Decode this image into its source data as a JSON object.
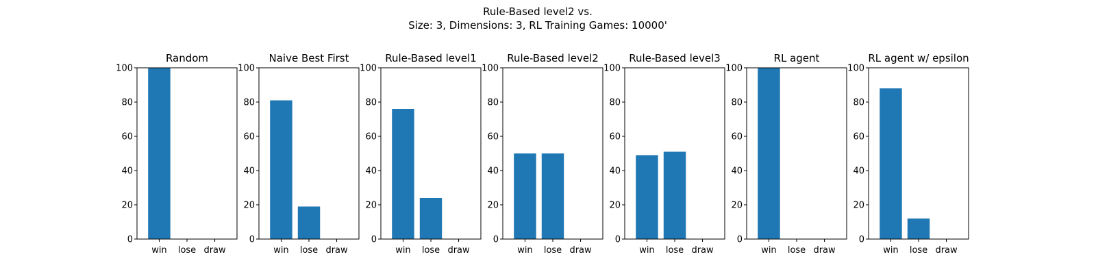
{
  "figure": {
    "title_line1": "Rule-Based level2 vs.",
    "title_line2": "Size: 3, Dimensions: 3, RL Training Games: 10000'"
  },
  "bar_color": "#1f77b4",
  "chart_data": [
    {
      "type": "bar",
      "title": "Random",
      "categories": [
        "win",
        "lose",
        "draw"
      ],
      "values": [
        100,
        0,
        0
      ],
      "ylim": [
        0,
        100
      ],
      "yticks": [
        "0",
        "20",
        "40",
        "60",
        "80",
        "100"
      ]
    },
    {
      "type": "bar",
      "title": "Naive Best First",
      "categories": [
        "win",
        "lose",
        "draw"
      ],
      "values": [
        81,
        19,
        0
      ],
      "ylim": [
        0,
        100
      ],
      "yticks": [
        "0",
        "20",
        "40",
        "60",
        "80",
        "100"
      ]
    },
    {
      "type": "bar",
      "title": "Rule-Based level1",
      "categories": [
        "win",
        "lose",
        "draw"
      ],
      "values": [
        76,
        24,
        0
      ],
      "ylim": [
        0,
        100
      ],
      "yticks": [
        "0",
        "20",
        "40",
        "60",
        "80",
        "100"
      ]
    },
    {
      "type": "bar",
      "title": "Rule-Based level2",
      "categories": [
        "win",
        "lose",
        "draw"
      ],
      "values": [
        50,
        50,
        0
      ],
      "ylim": [
        0,
        100
      ],
      "yticks": [
        "0",
        "20",
        "40",
        "60",
        "80",
        "100"
      ]
    },
    {
      "type": "bar",
      "title": "Rule-Based level3",
      "categories": [
        "win",
        "lose",
        "draw"
      ],
      "values": [
        49,
        51,
        0
      ],
      "ylim": [
        0,
        100
      ],
      "yticks": [
        "0",
        "20",
        "40",
        "60",
        "80",
        "100"
      ]
    },
    {
      "type": "bar",
      "title": "RL agent",
      "categories": [
        "win",
        "lose",
        "draw"
      ],
      "values": [
        100,
        0,
        0
      ],
      "ylim": [
        0,
        100
      ],
      "yticks": [
        "0",
        "20",
        "40",
        "60",
        "80",
        "100"
      ]
    },
    {
      "type": "bar",
      "title": "RL agent w/ epsilon",
      "categories": [
        "win",
        "lose",
        "draw"
      ],
      "values": [
        88,
        12,
        0
      ],
      "ylim": [
        0,
        100
      ],
      "yticks": [
        "0",
        "20",
        "40",
        "60",
        "80",
        "100"
      ]
    }
  ]
}
